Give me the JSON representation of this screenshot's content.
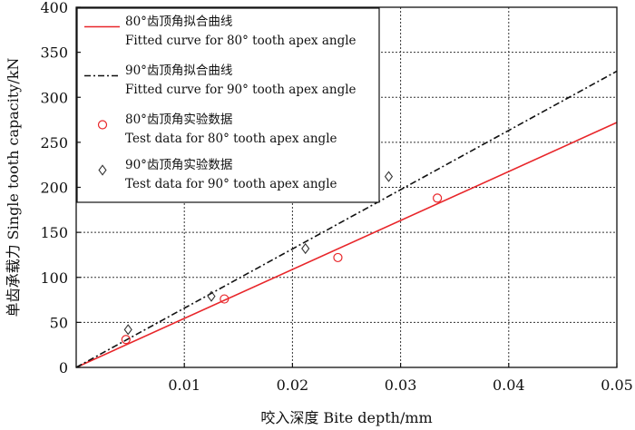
{
  "chart_data": {
    "type": "line",
    "xlabel": "咬入深度 Bite depth/mm",
    "ylabel": "单齿承载力 Single tooth capacity/kN",
    "xlim": [
      0,
      0.05
    ],
    "ylim": [
      0,
      400
    ],
    "xticks": [
      0.01,
      0.02,
      0.03,
      0.04,
      0.05
    ],
    "xtick_labels": [
      "0.01",
      "0.02",
      "0.03",
      "0.04",
      "0.05"
    ],
    "yticks": [
      0,
      50,
      100,
      150,
      200,
      250,
      300,
      350,
      400
    ],
    "ytick_labels": [
      "0",
      "50",
      "100",
      "150",
      "200",
      "250",
      "300",
      "350",
      "400"
    ],
    "grid": true,
    "legend_position": "top-left",
    "series": [
      {
        "name": "80°齿顶角拟合曲线",
        "name_en": "Fitted curve for 80° tooth apex angle",
        "kind": "line",
        "style": "solid",
        "color": "#e8262a",
        "x": [
          0,
          0.05
        ],
        "y": [
          0,
          272
        ]
      },
      {
        "name": "90°齿顶角拟合曲线",
        "name_en": "Fitted curve for 90° tooth apex angle",
        "kind": "line",
        "style": "dash-dot",
        "color": "#111111",
        "x": [
          0,
          0.05
        ],
        "y": [
          0,
          329
        ]
      },
      {
        "name": "80°齿顶角实验数据",
        "name_en": "Test data for 80° tooth apex angle",
        "kind": "scatter",
        "marker": "circle",
        "color": "#e8262a",
        "x": [
          0.0046,
          0.0137,
          0.0242,
          0.0334
        ],
        "y": [
          31,
          76,
          122,
          188
        ]
      },
      {
        "name": "90°齿顶角实验数据",
        "name_en": "Test data for 90° tooth apex angle",
        "kind": "scatter",
        "marker": "diamond",
        "color": "#333333",
        "x": [
          0.0048,
          0.0125,
          0.0212,
          0.0289
        ],
        "y": [
          42,
          79,
          132,
          212
        ]
      }
    ]
  }
}
